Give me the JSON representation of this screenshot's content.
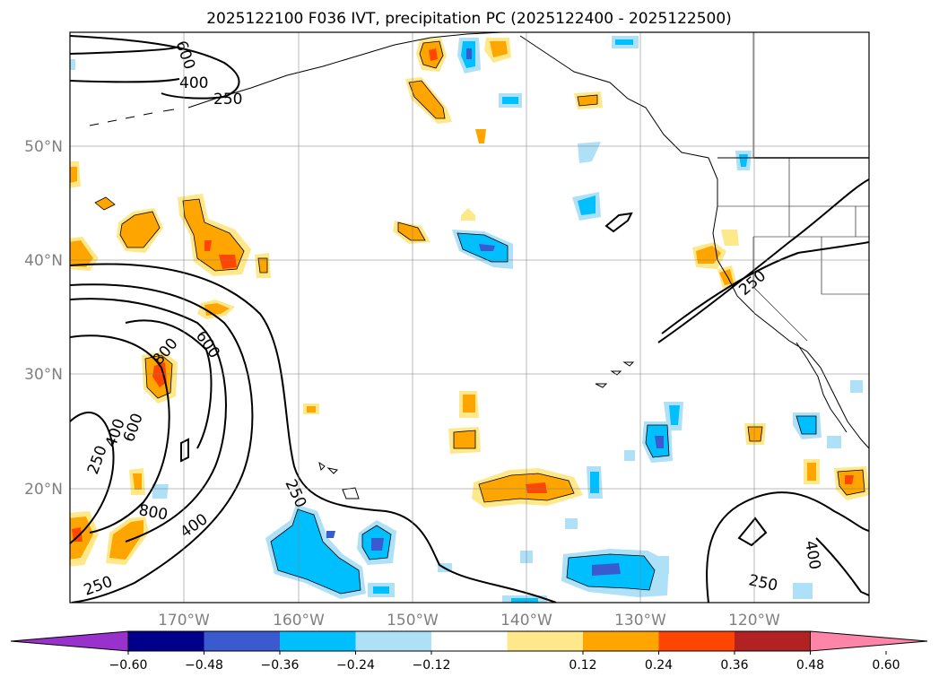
{
  "title": "2025122100 F036 IVT, precipitation PC (2025122400 - 2025122500)",
  "map": {
    "lat_labels": [
      "50°N",
      "40°N",
      "30°N",
      "20°N"
    ],
    "lon_labels": [
      "170°W",
      "160°W",
      "150°W",
      "140°W",
      "130°W",
      "120°W"
    ],
    "grid": true
  },
  "ivt_contours": {
    "levels": [
      "250",
      "400",
      "600",
      "800"
    ],
    "labels": [
      "600",
      "400",
      "250",
      "800",
      "600",
      "600",
      "400",
      "250",
      "800",
      "400",
      "250",
      "250",
      "250",
      "400",
      "250"
    ]
  },
  "colorbar": {
    "ticks": [
      "−0.60",
      "−0.48",
      "−0.36",
      "−0.24",
      "−0.12",
      "0.12",
      "0.24",
      "0.36",
      "0.48",
      "0.60"
    ],
    "colors": [
      "#9932cc",
      "#00008b",
      "#3a5bcf",
      "#00bfff",
      "#aee0f7",
      "#ffffff",
      "#ffe88a",
      "#ffa500",
      "#ff4500",
      "#b22222",
      "#ff85a8"
    ]
  },
  "colors": {
    "neg_light": "#aee0f7",
    "neg_mid": "#00bfff",
    "neg_dark": "#3a5bcf",
    "pos_light": "#ffe88a",
    "pos_mid": "#ffa500",
    "pos_dark": "#ff4500"
  }
}
